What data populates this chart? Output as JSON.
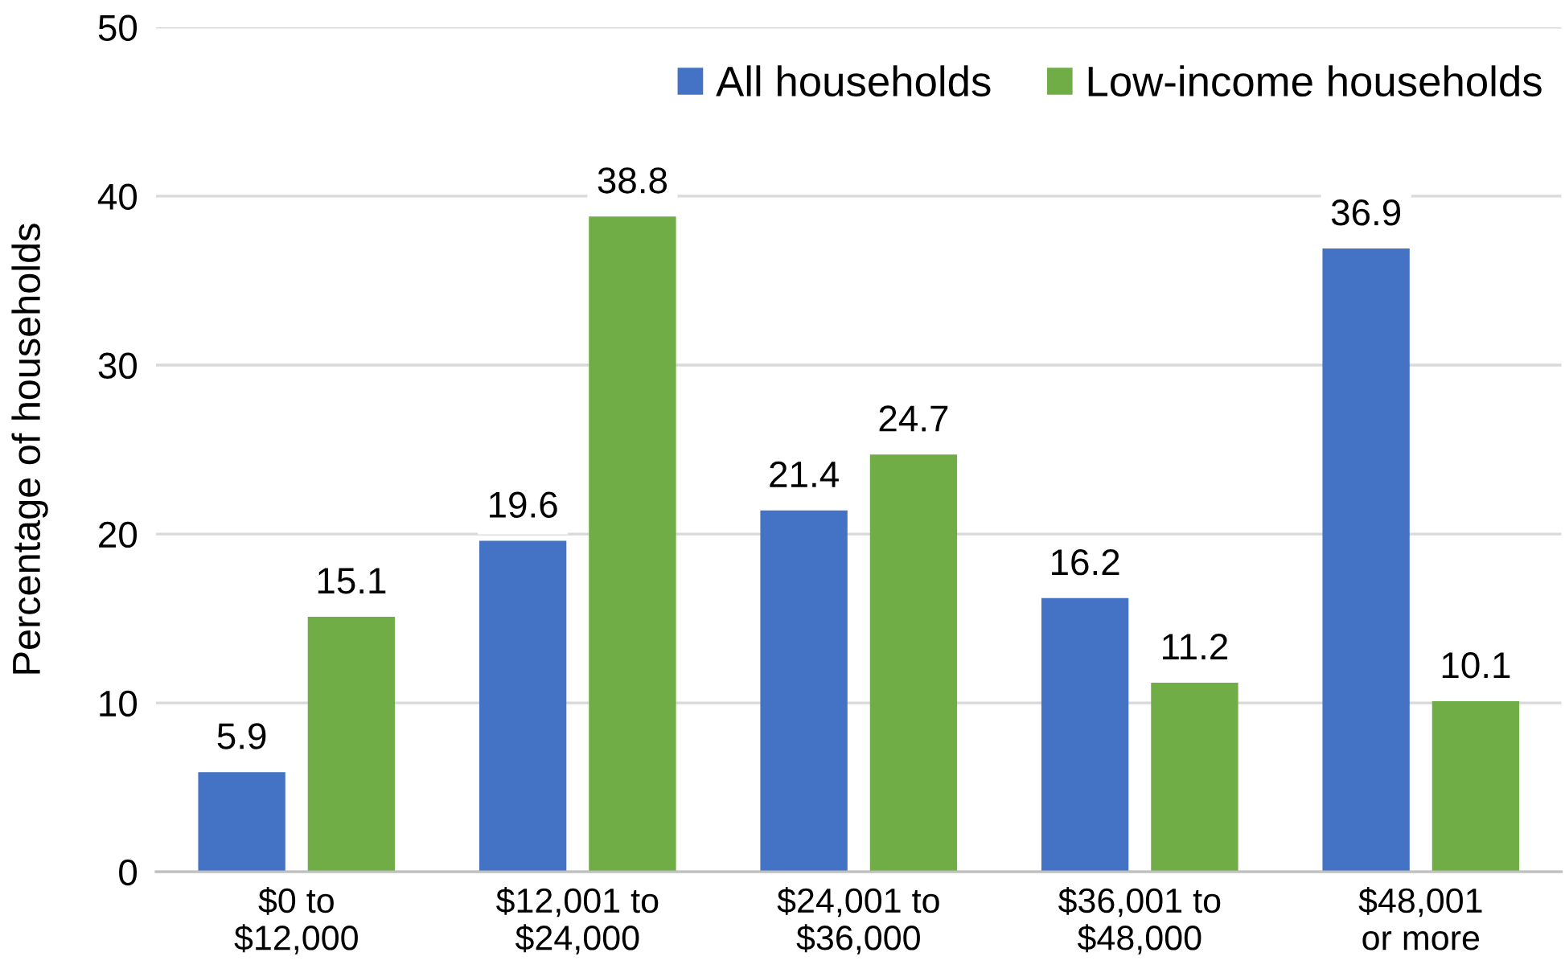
{
  "chart_data": {
    "type": "bar",
    "ylabel": "Percentage of households",
    "categories": [
      "$0 to\n$12,000",
      "$12,001 to\n$24,000",
      "$24,001 to\n$36,000",
      "$36,001 to\n$48,000",
      "$48,001\nor more"
    ],
    "series": [
      {
        "name": "All households",
        "color": "#4472c4",
        "values": [
          5.9,
          19.6,
          21.4,
          16.2,
          36.9
        ]
      },
      {
        "name": "Low-income households",
        "color": "#70ad47",
        "values": [
          15.1,
          38.8,
          24.7,
          11.2,
          10.1
        ]
      }
    ],
    "ylim": [
      0,
      50
    ],
    "yticks": [
      0,
      10,
      20,
      30,
      40,
      50
    ],
    "grid": "y",
    "legend": "top right",
    "data_labels": true
  }
}
